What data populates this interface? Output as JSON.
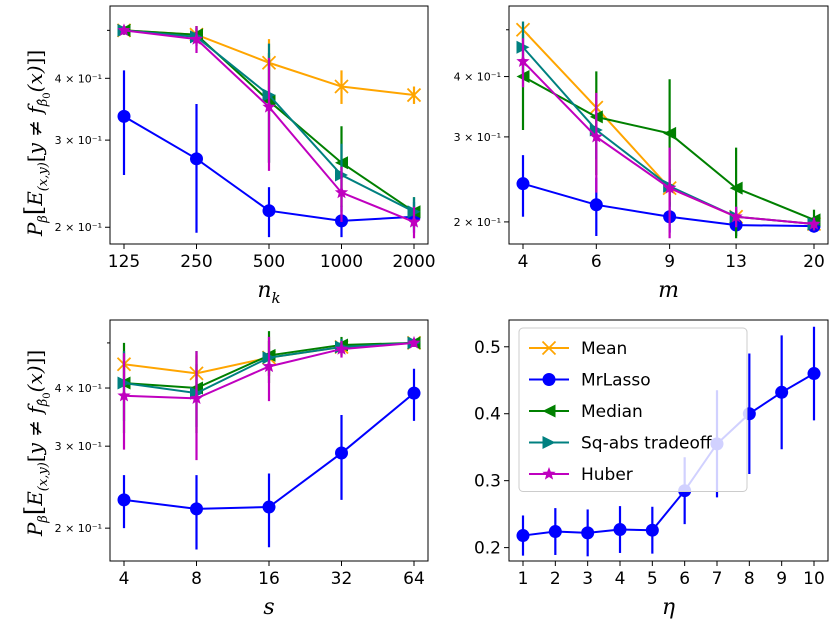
{
  "colors": {
    "Mean": "#FFA500",
    "MrLasso": "#0000FF",
    "Median": "#008000",
    "Sq-abs tradeoff": "#008080",
    "Huber": "#BF00BF"
  },
  "markers": {
    "Mean": "x",
    "MrLasso": "circle",
    "Median": "triangle-left",
    "Sq-abs tradeoff": "triangle-right",
    "Huber": "star"
  },
  "ylabel_text": "Pβ[E(x,y)[y ≠ f_β̂0(x)]]",
  "ylabel_parts": {
    "p": "P",
    "p_sub": "β",
    "e": "E",
    "e_sub": "(x,y)",
    "bracket_open": "[",
    "y_neq": "y ≠ f",
    "f_sub": "β̂",
    "f_subsub": "0",
    "x_arg": "(x)",
    "close": "]]"
  },
  "chart_data": [
    {
      "id": "nk",
      "type": "line",
      "xscale": "log",
      "yscale": "log",
      "xlabel": "n_k",
      "xlabel_main": "n",
      "xlabel_sub": "k",
      "x": [
        125,
        250,
        500,
        1000,
        2000
      ],
      "xticklabels": [
        "125",
        "250",
        "500",
        "1000",
        "2000"
      ],
      "ylim": [
        0.185,
        0.56
      ],
      "yticks": [
        0.2,
        0.3,
        0.4
      ],
      "yticklabels": [
        "2 × 10⁻¹",
        "3 × 10⁻¹",
        "4 × 10⁻¹"
      ],
      "series": [
        {
          "name": "Mean",
          "values": [
            0.5,
            0.49,
            0.43,
            0.385,
            0.37
          ],
          "err": [
            0.01,
            0.02,
            0.05,
            0.03,
            0.015
          ]
        },
        {
          "name": "MrLasso",
          "values": [
            0.335,
            0.275,
            0.216,
            0.206,
            0.21
          ],
          "err": [
            0.08,
            0.08,
            0.025,
            0.015,
            0.015
          ]
        },
        {
          "name": "Median",
          "values": [
            0.5,
            0.49,
            0.36,
            0.27,
            0.215
          ],
          "err": [
            0.01,
            0.02,
            0.09,
            0.05,
            0.015
          ]
        },
        {
          "name": "Sq-abs tradeoff",
          "values": [
            0.5,
            0.485,
            0.37,
            0.255,
            0.215
          ],
          "err": [
            0.01,
            0.02,
            0.1,
            0.04,
            0.015
          ]
        },
        {
          "name": "Huber",
          "values": [
            0.5,
            0.48,
            0.35,
            0.235,
            0.205
          ],
          "err": [
            0.01,
            0.03,
            0.09,
            0.03,
            0.015
          ]
        }
      ]
    },
    {
      "id": "m",
      "type": "line",
      "xscale": "log",
      "yscale": "log",
      "xlabel": "m",
      "xlabel_main": "m",
      "xlabel_sub": "",
      "x": [
        4,
        6,
        9,
        13,
        20
      ],
      "xticklabels": [
        "4",
        "6",
        "9",
        "13",
        "20"
      ],
      "ylim": [
        0.18,
        0.56
      ],
      "yticks": [
        0.2,
        0.3,
        0.4
      ],
      "yticklabels": [
        "2 × 10⁻¹",
        "3 × 10⁻¹",
        "4 × 10⁻¹"
      ],
      "series": [
        {
          "name": "Mean",
          "values": [
            0.5,
            0.345,
            0.235,
            0.205,
            0.198
          ],
          "err": [
            0.02,
            0.03,
            0.015,
            0.008,
            0.006
          ]
        },
        {
          "name": "MrLasso",
          "values": [
            0.24,
            0.217,
            0.205,
            0.197,
            0.196
          ],
          "err": [
            0.035,
            0.03,
            0.015,
            0.01,
            0.006
          ]
        },
        {
          "name": "Median",
          "values": [
            0.4,
            0.33,
            0.305,
            0.235,
            0.202
          ],
          "err": [
            0.09,
            0.08,
            0.09,
            0.05,
            0.01
          ]
        },
        {
          "name": "Sq-abs tradeoff",
          "values": [
            0.46,
            0.31,
            0.237,
            0.205,
            0.198
          ],
          "err": [
            0.06,
            0.04,
            0.02,
            0.01,
            0.006
          ]
        },
        {
          "name": "Huber",
          "values": [
            0.43,
            0.3,
            0.235,
            0.205,
            0.198
          ],
          "err": [
            0.05,
            0.07,
            0.05,
            0.01,
            0.006
          ]
        }
      ]
    },
    {
      "id": "s",
      "type": "line",
      "xscale": "log",
      "yscale": "log",
      "xlabel": "s",
      "xlabel_main": "s",
      "xlabel_sub": "",
      "x": [
        4,
        8,
        16,
        32,
        64
      ],
      "xticklabels": [
        "4",
        "8",
        "16",
        "32",
        "64"
      ],
      "ylim": [
        0.17,
        0.56
      ],
      "yticks": [
        0.2,
        0.3,
        0.4
      ],
      "yticklabels": [
        "2 × 10⁻¹",
        "3 × 10⁻¹",
        "4 × 10⁻¹"
      ],
      "series": [
        {
          "name": "Mean",
          "values": [
            0.45,
            0.43,
            0.465,
            0.49,
            0.5
          ],
          "err": [
            0.03,
            0.04,
            0.04,
            0.02,
            0.01
          ]
        },
        {
          "name": "MrLasso",
          "values": [
            0.23,
            0.22,
            0.222,
            0.29,
            0.39
          ],
          "err": [
            0.03,
            0.04,
            0.04,
            0.06,
            0.05
          ]
        },
        {
          "name": "Median",
          "values": [
            0.41,
            0.4,
            0.47,
            0.495,
            0.5
          ],
          "err": [
            0.09,
            0.08,
            0.06,
            0.02,
            0.01
          ]
        },
        {
          "name": "Sq-abs tradeoff",
          "values": [
            0.41,
            0.39,
            0.465,
            0.49,
            0.5
          ],
          "err": [
            0.07,
            0.06,
            0.04,
            0.02,
            0.01
          ]
        },
        {
          "name": "Huber",
          "values": [
            0.385,
            0.38,
            0.445,
            0.485,
            0.5
          ],
          "err": [
            0.09,
            0.1,
            0.07,
            0.02,
            0.01
          ]
        }
      ]
    },
    {
      "id": "eta",
      "type": "line",
      "xscale": "linear",
      "yscale": "linear",
      "xlabel": "η",
      "xlabel_main": "η",
      "xlabel_sub": "",
      "x": [
        1,
        2,
        3,
        4,
        5,
        6,
        7,
        8,
        9,
        10
      ],
      "xticklabels": [
        "1",
        "2",
        "3",
        "4",
        "5",
        "6",
        "7",
        "8",
        "9",
        "10"
      ],
      "ylim": [
        0.18,
        0.54
      ],
      "yticks": [
        0.2,
        0.3,
        0.4,
        0.5
      ],
      "yticklabels": [
        "0.2",
        "0.3",
        "0.4",
        "0.5"
      ],
      "series": [
        {
          "name": "MrLasso",
          "values": [
            0.218,
            0.224,
            0.222,
            0.227,
            0.226,
            0.285,
            0.355,
            0.4,
            0.432,
            0.46
          ],
          "err": [
            0.03,
            0.035,
            0.035,
            0.035,
            0.035,
            0.05,
            0.08,
            0.09,
            0.085,
            0.07
          ]
        }
      ],
      "legend": {
        "placement": "top-left",
        "entries": [
          "Mean",
          "MrLasso",
          "Median",
          "Sq-abs tradeoff",
          "Huber"
        ]
      }
    }
  ]
}
